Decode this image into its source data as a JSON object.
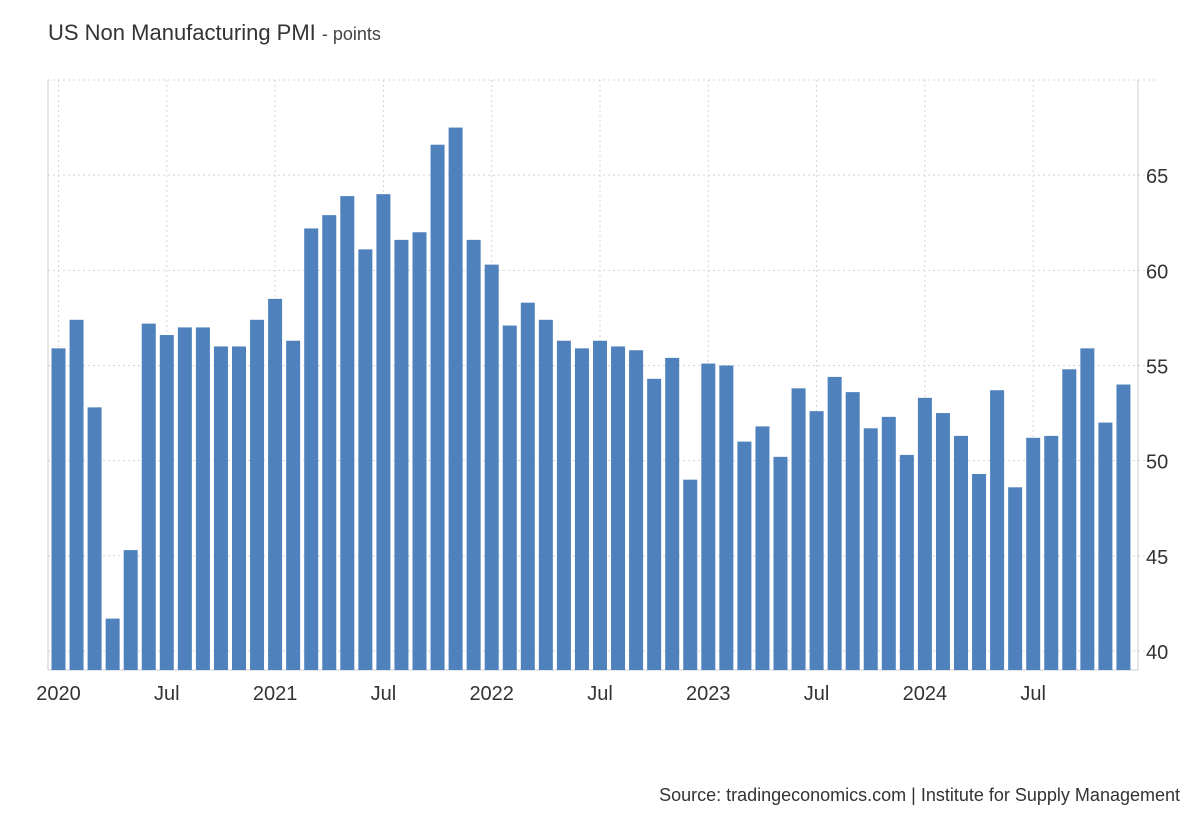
{
  "title": "US Non Manufacturing PMI",
  "unit_suffix": "- points",
  "source": "Source: tradingeconomics.com | Institute for Supply Management",
  "chart_data": {
    "type": "bar",
    "title": "US Non Manufacturing PMI",
    "ylabel": "points",
    "ylim": [
      39,
      70
    ],
    "yticks": [
      40,
      45,
      50,
      55,
      60,
      65
    ],
    "color": "#4f81bd",
    "grid": true,
    "x_tick_labels": [
      {
        "index": 0,
        "label": "2020"
      },
      {
        "index": 6,
        "label": "Jul"
      },
      {
        "index": 12,
        "label": "2021"
      },
      {
        "index": 18,
        "label": "Jul"
      },
      {
        "index": 24,
        "label": "2022"
      },
      {
        "index": 30,
        "label": "Jul"
      },
      {
        "index": 36,
        "label": "2023"
      },
      {
        "index": 42,
        "label": "Jul"
      },
      {
        "index": 48,
        "label": "2024"
      },
      {
        "index": 54,
        "label": "Jul"
      }
    ],
    "categories": [
      "Jan 2020",
      "Feb 2020",
      "Mar 2020",
      "Apr 2020",
      "May 2020",
      "Jun 2020",
      "Jul 2020",
      "Aug 2020",
      "Sep 2020",
      "Oct 2020",
      "Nov 2020",
      "Dec 2020",
      "Jan 2021",
      "Feb 2021",
      "Mar 2021",
      "Apr 2021",
      "May 2021",
      "Jun 2021",
      "Jul 2021",
      "Aug 2021",
      "Sep 2021",
      "Oct 2021",
      "Nov 2021",
      "Dec 2021",
      "Jan 2022",
      "Feb 2022",
      "Mar 2022",
      "Apr 2022",
      "May 2022",
      "Jun 2022",
      "Jul 2022",
      "Aug 2022",
      "Sep 2022",
      "Oct 2022",
      "Nov 2022",
      "Dec 2022",
      "Jan 2023",
      "Feb 2023",
      "Mar 2023",
      "Apr 2023",
      "May 2023",
      "Jun 2023",
      "Jul 2023",
      "Aug 2023",
      "Sep 2023",
      "Oct 2023",
      "Nov 2023",
      "Dec 2023",
      "Jan 2024",
      "Feb 2024",
      "Mar 2024",
      "Apr 2024",
      "May 2024",
      "Jun 2024",
      "Jul 2024",
      "Aug 2024",
      "Sep 2024",
      "Oct 2024",
      "Nov 2024",
      "Dec 2024"
    ],
    "values": [
      55.9,
      57.4,
      52.8,
      41.7,
      45.3,
      57.2,
      56.6,
      57.0,
      57.0,
      56.0,
      56.0,
      57.4,
      58.5,
      56.3,
      62.2,
      62.9,
      63.9,
      61.1,
      64.0,
      61.6,
      62.0,
      66.6,
      67.5,
      61.6,
      60.3,
      57.1,
      58.3,
      57.4,
      56.3,
      55.9,
      56.3,
      56.0,
      55.8,
      54.3,
      55.4,
      49.0,
      55.1,
      55.0,
      51.0,
      51.8,
      50.2,
      53.8,
      52.6,
      54.4,
      53.6,
      51.7,
      52.3,
      50.3,
      53.3,
      52.5,
      51.3,
      49.3,
      53.7,
      48.6,
      51.2,
      51.3,
      54.8,
      55.9,
      52.0,
      54.0
    ]
  }
}
